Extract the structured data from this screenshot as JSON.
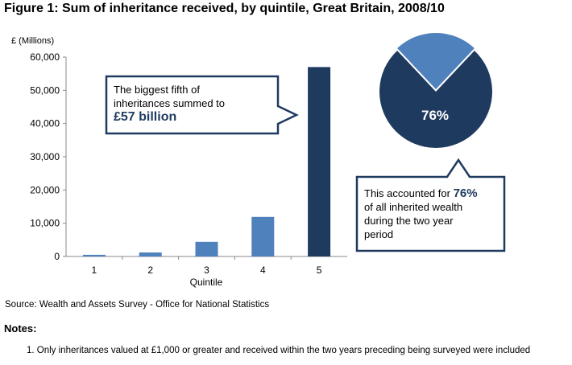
{
  "title": "Figure 1: Sum of inheritance received, by quintile, Great Britain, 2008/10",
  "source": "Source: Wealth and Assets Survey - Office for National Statistics",
  "notes_heading": "Notes:",
  "notes": [
    "1.  Only inheritances valued at £1,000 or greater and received within the two years preceding being surveyed were included"
  ],
  "callout_left": {
    "line1": "The biggest fifth of",
    "line2": "inheritances summed to",
    "highlight": "£57 billion"
  },
  "callout_right": {
    "prefix": "This accounted for ",
    "highlight": "76%",
    "line2": "of all inherited wealth",
    "line3": "during the two year",
    "line4": "period"
  },
  "pie_label": "76%",
  "colors": {
    "bar_light": "#4f81bd",
    "bar_dark": "#1f3a5f",
    "pie_main": "#1f3a5f",
    "pie_slice": "#4f81bd",
    "callout_border": "#1f3a5f"
  },
  "chart_data": [
    {
      "type": "bar",
      "ylabel": "£ (Millions)",
      "xlabel": "Quintile",
      "categories": [
        "1",
        "2",
        "3",
        "4",
        "5"
      ],
      "values": [
        500,
        1200,
        4400,
        11900,
        57000
      ],
      "ylim": [
        0,
        60000
      ],
      "yticks": [
        0,
        10000,
        20000,
        30000,
        40000,
        50000,
        60000
      ],
      "ytick_labels": [
        "0",
        "10,000",
        "20,000",
        "30,000",
        "40,000",
        "50,000",
        "60,000"
      ],
      "grid": false
    },
    {
      "type": "pie",
      "values": [
        76,
        24
      ],
      "data_labels": [
        "76%",
        ""
      ]
    }
  ]
}
